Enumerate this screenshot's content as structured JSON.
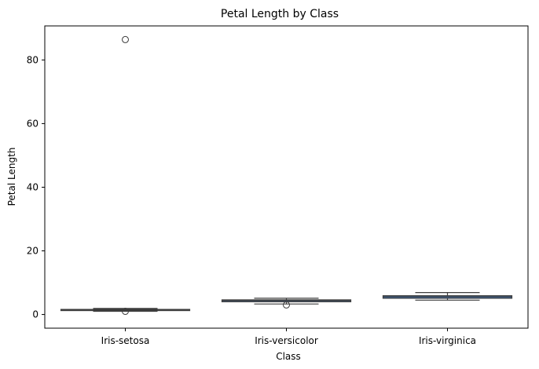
{
  "chart_data": {
    "type": "box",
    "title": "Petal Length by Class",
    "xlabel": "Class",
    "ylabel": "Petal Length",
    "categories": [
      "Iris-setosa",
      "Iris-versicolor",
      "Iris-virginica"
    ],
    "yticks": [
      0,
      20,
      40,
      60,
      80
    ],
    "ylim": [
      -4.3,
      90.7
    ],
    "grid": false,
    "boxes": [
      {
        "category": "Iris-setosa",
        "whisker_low": 1.0,
        "q1": 1.4,
        "median": 1.5,
        "q3": 1.6,
        "whisker_high": 1.9,
        "outliers": [
          86.4,
          1.0
        ]
      },
      {
        "category": "Iris-versicolor",
        "whisker_low": 3.3,
        "q1": 4.0,
        "median": 4.35,
        "q3": 4.6,
        "whisker_high": 5.1,
        "outliers": [
          3.0
        ]
      },
      {
        "category": "Iris-virginica",
        "whisker_low": 4.5,
        "q1": 5.1,
        "median": 5.55,
        "q3": 5.9,
        "whisker_high": 6.9,
        "outliers": []
      }
    ],
    "colors": {
      "box_fill": "#3b73b8",
      "lines": "#3d3d3d",
      "axes": "#000000"
    }
  }
}
